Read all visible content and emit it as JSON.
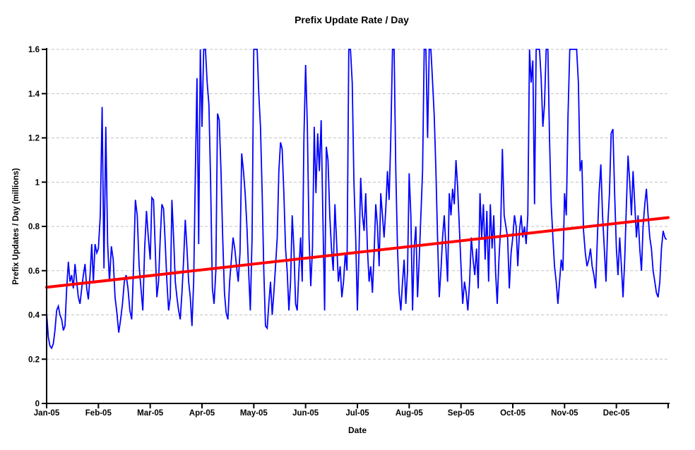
{
  "page": {
    "background": "#ffffff"
  },
  "colors": {
    "series_blue": "#0000ff",
    "trend_red": "#ff0000",
    "gridline": "#c0c0c0",
    "axis": "#000000",
    "text": "#000000",
    "background": "#ffffff"
  },
  "chart_data": {
    "type": "line",
    "title": "Prefix Update Rate / Day",
    "xlabel": "Date",
    "ylabel": "Prefix Updates / Day (millions)",
    "x_tick_labels": [
      "Jan-05",
      "Feb-05",
      "Mar-05",
      "Apr-05",
      "May-05",
      "Jun-05",
      "Jul-05",
      "Aug-05",
      "Sep-05",
      "Oct-05",
      "Nov-05",
      "Dec-05"
    ],
    "y_ticks": [
      0,
      0.2,
      0.4,
      0.6,
      0.8,
      1,
      1.2,
      1.4,
      1.6
    ],
    "y_tick_labels": [
      "0",
      "0.2",
      "0.4",
      "0.6",
      "0.8",
      "1",
      "1.2",
      "1.4",
      "1.6"
    ],
    "ylim": [
      0,
      1.6
    ],
    "clip_max": 1.6,
    "grid": "horizontal-dashed",
    "legend": "none",
    "x_unit": "daily values, Jan 1 2005 through Dec 31 2005",
    "month_lengths": [
      31,
      28,
      31,
      30,
      31,
      30,
      31,
      31,
      30,
      31,
      30,
      31
    ],
    "series": [
      {
        "name": "prefix-updates-per-day",
        "type": "line",
        "color": "#0000ff",
        "values": [
          0.41,
          0.3,
          0.26,
          0.25,
          0.27,
          0.33,
          0.42,
          0.44,
          0.4,
          0.38,
          0.33,
          0.35,
          0.52,
          0.64,
          0.55,
          0.58,
          0.52,
          0.63,
          0.55,
          0.48,
          0.45,
          0.52,
          0.58,
          0.63,
          0.52,
          0.47,
          0.58,
          0.72,
          0.55,
          0.72,
          0.68,
          0.7,
          0.85,
          1.34,
          0.61,
          1.25,
          0.72,
          0.55,
          0.71,
          0.65,
          0.48,
          0.41,
          0.32,
          0.38,
          0.45,
          0.55,
          0.58,
          0.52,
          0.42,
          0.38,
          0.62,
          0.92,
          0.85,
          0.62,
          0.52,
          0.42,
          0.7,
          0.87,
          0.75,
          0.65,
          0.93,
          0.92,
          0.7,
          0.48,
          0.55,
          0.75,
          0.9,
          0.88,
          0.72,
          0.55,
          0.42,
          0.48,
          0.92,
          0.75,
          0.55,
          0.48,
          0.42,
          0.38,
          0.5,
          0.65,
          0.83,
          0.7,
          0.55,
          0.48,
          0.35,
          0.55,
          1.02,
          1.47,
          0.72,
          1.6,
          1.25,
          1.6,
          1.6,
          1.45,
          1.35,
          1.0,
          0.52,
          0.45,
          0.6,
          1.31,
          1.28,
          1.05,
          0.75,
          0.5,
          0.41,
          0.38,
          0.55,
          0.65,
          0.75,
          0.7,
          0.62,
          0.55,
          0.68,
          1.13,
          1.05,
          0.95,
          0.8,
          0.6,
          0.42,
          0.75,
          1.6,
          1.6,
          1.6,
          1.4,
          1.25,
          0.95,
          0.6,
          0.35,
          0.34,
          0.45,
          0.55,
          0.4,
          0.5,
          0.62,
          0.75,
          1.05,
          1.18,
          1.15,
          0.95,
          0.7,
          0.6,
          0.42,
          0.55,
          0.85,
          0.7,
          0.45,
          0.42,
          0.6,
          0.75,
          0.55,
          1.2,
          1.53,
          1.26,
          0.75,
          0.53,
          0.7,
          1.25,
          0.95,
          1.22,
          1.05,
          1.28,
          0.85,
          0.42,
          1.16,
          1.1,
          0.85,
          0.7,
          0.6,
          0.9,
          0.72,
          0.55,
          0.62,
          0.48,
          0.55,
          0.68,
          0.6,
          1.6,
          1.6,
          1.45,
          1.0,
          0.75,
          0.42,
          0.7,
          1.02,
          0.85,
          0.78,
          0.95,
          0.7,
          0.55,
          0.62,
          0.5,
          0.68,
          0.9,
          0.8,
          0.62,
          0.95,
          0.85,
          0.75,
          0.88,
          1.05,
          0.92,
          1.2,
          1.6,
          1.6,
          1.05,
          0.7,
          0.5,
          0.42,
          0.55,
          0.65,
          0.45,
          0.6,
          1.04,
          0.85,
          0.42,
          0.7,
          0.8,
          0.48,
          0.65,
          0.85,
          1.05,
          1.6,
          1.6,
          1.2,
          1.6,
          1.6,
          1.45,
          1.3,
          1.05,
          0.75,
          0.48,
          0.6,
          0.75,
          0.85,
          0.7,
          0.55,
          0.95,
          0.85,
          0.97,
          0.9,
          1.1,
          0.98,
          0.8,
          0.62,
          0.45,
          0.55,
          0.5,
          0.42,
          0.55,
          0.75,
          0.65,
          0.58,
          0.7,
          0.52,
          0.95,
          0.75,
          0.9,
          0.65,
          0.87,
          0.55,
          0.9,
          0.7,
          0.85,
          0.6,
          0.45,
          0.65,
          0.8,
          1.15,
          0.85,
          0.8,
          0.75,
          0.52,
          0.68,
          0.75,
          0.85,
          0.8,
          0.62,
          0.78,
          0.85,
          0.75,
          0.8,
          0.72,
          0.85,
          1.6,
          1.45,
          1.55,
          0.9,
          1.6,
          1.6,
          1.6,
          1.47,
          1.25,
          1.35,
          1.6,
          1.6,
          1.2,
          0.9,
          0.75,
          0.62,
          0.55,
          0.45,
          0.55,
          0.65,
          0.6,
          0.95,
          0.85,
          1.3,
          1.6,
          1.6,
          1.6,
          1.6,
          1.6,
          1.45,
          1.05,
          1.1,
          0.78,
          0.68,
          0.62,
          0.65,
          0.7,
          0.62,
          0.58,
          0.52,
          0.75,
          0.95,
          1.08,
          0.85,
          0.7,
          0.55,
          0.8,
          0.95,
          1.22,
          1.24,
          0.95,
          0.7,
          0.58,
          0.75,
          0.62,
          0.48,
          0.65,
          0.9,
          1.12,
          1.0,
          0.85,
          1.05,
          0.9,
          0.75,
          0.85,
          0.7,
          0.6,
          0.8,
          0.9,
          0.97,
          0.85,
          0.75,
          0.7,
          0.6,
          0.55,
          0.5,
          0.48,
          0.55,
          0.7,
          0.78,
          0.75,
          0.74
        ]
      },
      {
        "name": "linear-trend",
        "type": "trendline",
        "color": "#ff0000",
        "endpoints": [
          0.525,
          0.84
        ]
      }
    ]
  }
}
